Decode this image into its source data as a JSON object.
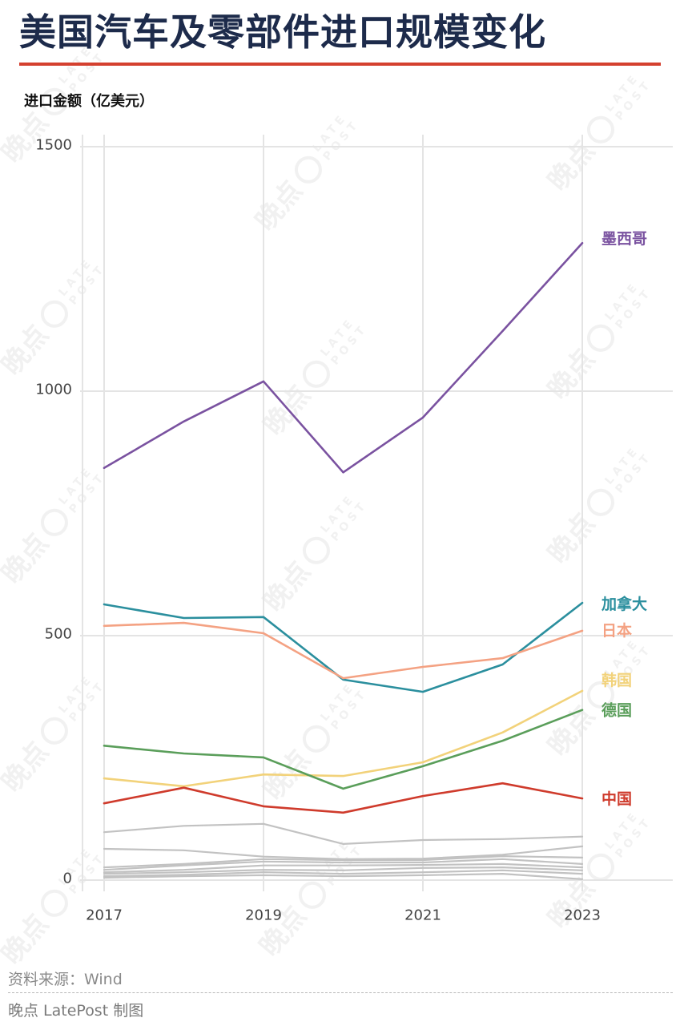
{
  "colors": {
    "title": "#1d2b4b",
    "accent_rule": "#d4402f",
    "gridline": "#e4e4e4",
    "tick_text": "#444444"
  },
  "watermark": {
    "brand": "晚点",
    "latin_top": "LATE",
    "latin_bottom": "POST"
  },
  "chart_data": {
    "type": "line",
    "title": "美国汽车及零部件进口规模变化",
    "ylabel": "进口金额（亿美元）",
    "x": [
      2017,
      2018,
      2019,
      2020,
      2021,
      2022,
      2023
    ],
    "x_ticks": [
      "2017",
      "2019",
      "2021",
      "2023"
    ],
    "y_ticks": [
      "0",
      "500",
      "1000",
      "1500"
    ],
    "ylim": [
      0,
      1500
    ],
    "grid": true,
    "legend": "right",
    "series": [
      {
        "name": "墨西哥",
        "color": "#7a52a0",
        "values": [
          843,
          938,
          1020,
          834,
          946,
          1123,
          1303
        ]
      },
      {
        "name": "加拿大",
        "color": "#2b8f9e",
        "values": [
          564,
          536,
          538,
          410,
          385,
          441,
          567
        ]
      },
      {
        "name": "日本",
        "color": "#f4a283",
        "values": [
          520,
          526,
          505,
          413,
          436,
          454,
          510
        ]
      },
      {
        "name": "韩国",
        "color": "#f2d27a",
        "values": [
          208,
          192,
          216,
          213,
          241,
          302,
          387
        ]
      },
      {
        "name": "德国",
        "color": "#5a9e5a",
        "values": [
          275,
          259,
          251,
          187,
          233,
          285,
          348
        ]
      },
      {
        "name": "中国",
        "color": "#cf3b2c",
        "values": [
          157,
          189,
          151,
          138,
          172,
          198,
          167
        ]
      },
      {
        "color": "#c2c2c2",
        "values": [
          98,
          111,
          115,
          74,
          82,
          84,
          89
        ]
      },
      {
        "color": "#c2c2c2",
        "values": [
          64,
          61,
          48,
          43,
          44,
          52,
          69
        ]
      },
      {
        "color": "#c2c2c2",
        "values": [
          26,
          33,
          43,
          41,
          41,
          49,
          46
        ]
      },
      {
        "color": "#c2c2c2",
        "values": [
          21,
          30,
          38,
          36,
          36,
          43,
          33
        ]
      },
      {
        "color": "#c2c2c2",
        "values": [
          16,
          21,
          30,
          30,
          31,
          33,
          26
        ]
      },
      {
        "color": "#c2c2c2",
        "values": [
          13,
          16,
          21,
          20,
          25,
          26,
          20
        ]
      },
      {
        "color": "#c2c2c2",
        "values": [
          8,
          11,
          16,
          13,
          16,
          20,
          13
        ]
      },
      {
        "color": "#c2c2c2",
        "values": [
          5,
          8,
          10,
          8,
          10,
          13,
          2
        ]
      }
    ]
  },
  "footer": {
    "source": "资料来源：Wind",
    "credit": "晚点 LatePost 制图"
  }
}
